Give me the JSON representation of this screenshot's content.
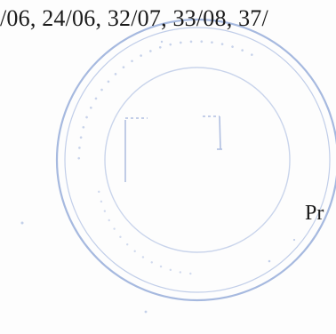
{
  "document": {
    "text_line": "/06, 24/06, 32/07, 33/08, 37/",
    "right_fragment": "Pr"
  },
  "stamp": {
    "shape": "round-seal",
    "ink_color": "#8aa3d6",
    "text": "",
    "center_mark": "signature-box"
  }
}
